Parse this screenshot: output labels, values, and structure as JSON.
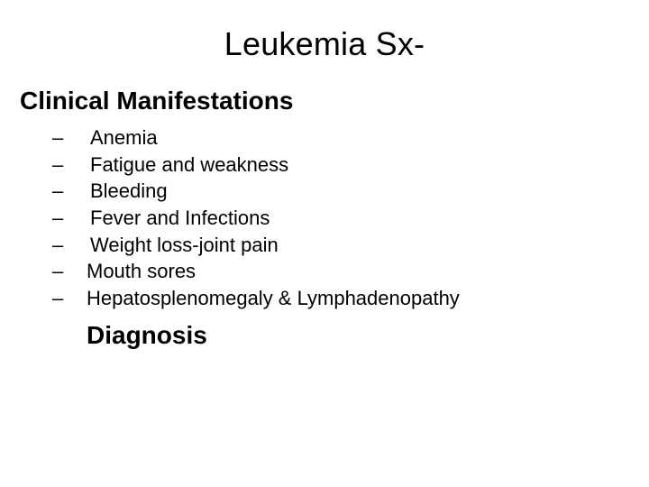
{
  "slide": {
    "title": "Leukemia Sx-",
    "subheading": "Clinical Manifestations",
    "bullets": [
      {
        "dash": "–",
        "text": "Anemia"
      },
      {
        "dash": "–",
        "text": "Fatigue and weakness"
      },
      {
        "dash": "–",
        "text": "Bleeding"
      },
      {
        "dash": "–",
        "text": "Fever and Infections"
      },
      {
        "dash": "–",
        "text": "Weight loss-joint pain"
      },
      {
        "dash": "–",
        "text": "Mouth sores"
      },
      {
        "dash": "–",
        "text": "Hepatosplenomegaly & Lymphadenopathy"
      }
    ],
    "footer_heading": "Diagnosis",
    "style": {
      "background_color": "#ffffff",
      "text_color": "#000000",
      "font_family": "Arial",
      "title_fontsize": 36,
      "subheading_fontsize": 28,
      "bullet_fontsize": 22,
      "footer_fontsize": 28
    }
  }
}
